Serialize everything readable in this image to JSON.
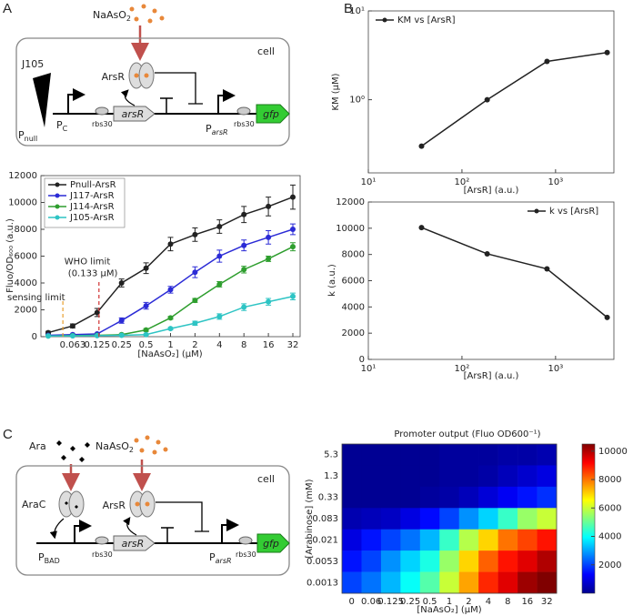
{
  "panel_labels": [
    "A",
    "B",
    "C"
  ],
  "diagram_a": {
    "inducer": {
      "main": "NaAsO",
      "sub": "2"
    },
    "cell": "cell",
    "protein": "ArsR",
    "library": "J105",
    "promoter_null": {
      "main": "P",
      "sub": "null"
    },
    "promoter_c": {
      "main": "P",
      "sub": "C"
    },
    "rbs_1": "rbs30",
    "gene": "arsR",
    "promoter_ars": {
      "main": "P",
      "sub": "arsR"
    },
    "rbs_2": "rbs30",
    "reporter": "gfp"
  },
  "diagram_c": {
    "inducer_ara": "Ara",
    "inducer": {
      "main": "NaAsO",
      "sub": "2"
    },
    "cell": "cell",
    "protein_arac": "AraC",
    "protein": "ArsR",
    "promoter_bad": {
      "main": "P",
      "sub": "BAD"
    },
    "rbs_1": "rbs30",
    "gene": "arsR",
    "promoter_ars": {
      "main": "P",
      "sub": "arsR"
    },
    "rbs_2": "rbs30",
    "reporter": "gfp"
  },
  "chart_data": [
    {
      "type": "line",
      "y_label": "Fluo/OD₆₀₀ (a.u.)",
      "x_label": "[NaAsO₂] (μM)",
      "categories": [
        null,
        "0.063",
        "0.125",
        "0.25",
        "0.5",
        "1",
        "2",
        "4",
        "8",
        "16",
        "32"
      ],
      "ylim": [
        0,
        12000
      ],
      "yticks": [
        0,
        2000,
        4000,
        6000,
        8000,
        10000,
        12000
      ],
      "legend": "upper left",
      "series": [
        {
          "name": "Pnull-ArsR",
          "color": "#222222",
          "values": [
            300,
            800,
            1800,
            4000,
            5100,
            6900,
            7600,
            8200,
            9100,
            9700,
            10400
          ],
          "errors": [
            100,
            150,
            300,
            300,
            400,
            500,
            500,
            500,
            600,
            700,
            900
          ]
        },
        {
          "name": "J117-ArsR",
          "color": "#2b2bd6",
          "values": [
            100,
            150,
            200,
            1200,
            2300,
            3500,
            4800,
            6000,
            6800,
            7400,
            8000
          ],
          "errors": [
            50,
            50,
            50,
            200,
            250,
            250,
            400,
            450,
            400,
            500,
            400
          ]
        },
        {
          "name": "J114-ArsR",
          "color": "#2e9e2e",
          "values": [
            50,
            80,
            100,
            150,
            500,
            1400,
            2700,
            3900,
            5000,
            5800,
            6700
          ],
          "errors": [
            30,
            30,
            30,
            50,
            100,
            100,
            150,
            200,
            250,
            200,
            300
          ]
        },
        {
          "name": "J105-ArsR",
          "color": "#2ec4c4",
          "values": [
            50,
            60,
            80,
            100,
            150,
            600,
            1000,
            1500,
            2200,
            2600,
            3000
          ],
          "errors": [
            30,
            30,
            30,
            50,
            50,
            80,
            150,
            200,
            250,
            250,
            250
          ]
        }
      ],
      "annotations": [
        "sensing limit",
        "WHO limit",
        "(0.133 μM)"
      ]
    },
    {
      "type": "line",
      "xscale": "log",
      "yscale": "log",
      "x_label": "[ArsR] (a.u.)",
      "y_label": "KM (μM)",
      "legend": "upper left",
      "x": [
        37,
        186,
        810,
        3560
      ],
      "xlim": [
        10,
        4200
      ],
      "ylim": [
        0.15,
        10
      ],
      "xticks": [
        {
          "value": 10,
          "label": "10¹"
        },
        {
          "value": 100,
          "label": "10²"
        },
        {
          "value": 1000,
          "label": "10³"
        }
      ],
      "yticks": [
        {
          "value": 1,
          "label": "10⁰"
        },
        {
          "value": 10,
          "label": "10¹"
        }
      ],
      "series": [
        {
          "name": "KM vs [ArsR]",
          "color": "#222222",
          "values": [
            0.3,
            1.0,
            2.7,
            3.4
          ]
        }
      ]
    },
    {
      "type": "line",
      "xscale": "log",
      "yscale": "linear",
      "x_label": "[ArsR] (a.u.)",
      "y_label": "k (a.u.)",
      "legend": "upper right",
      "x": [
        37,
        186,
        810,
        3560
      ],
      "xlim": [
        10,
        4200
      ],
      "ylim": [
        0,
        12000
      ],
      "xticks": [
        {
          "value": 10,
          "label": "10¹"
        },
        {
          "value": 100,
          "label": "10²"
        },
        {
          "value": 1000,
          "label": "10³"
        }
      ],
      "yticks": [
        0,
        2000,
        4000,
        6000,
        8000,
        10000,
        12000
      ],
      "series": [
        {
          "name": "k vs [ArsR]",
          "color": "#222222",
          "values": [
            10050,
            8050,
            6900,
            3200
          ]
        }
      ]
    },
    {
      "type": "heatmap",
      "title": "Promoter output (Fluo OD600⁻¹)",
      "x_label": "[NaAsO₂] (μM)",
      "y_label": "[Arabinose] (mM)",
      "colormap": "jet",
      "categories": [
        "0",
        "0.06",
        "0.125",
        "0.25",
        "0.5",
        "1",
        "2",
        "4",
        "8",
        "16",
        "32"
      ],
      "y_categories": [
        "5.3",
        "1.3",
        "0.33",
        "0.083",
        "0.021",
        "0.0053",
        "0.0013"
      ],
      "zlim": [
        0,
        10500
      ],
      "colorbar_ticks": [
        2000,
        4000,
        6000,
        8000,
        10000
      ],
      "values": [
        [
          200,
          200,
          200,
          200,
          200,
          300,
          300,
          300,
          400,
          400,
          500
        ],
        [
          200,
          200,
          200,
          200,
          200,
          300,
          300,
          400,
          600,
          800,
          1000
        ],
        [
          200,
          200,
          200,
          200,
          300,
          400,
          600,
          900,
          1200,
          1500,
          1800
        ],
        [
          500,
          600,
          700,
          1000,
          1400,
          2000,
          2800,
          3500,
          4500,
          5500,
          6000
        ],
        [
          1000,
          1500,
          2000,
          2500,
          3200,
          4500,
          5800,
          7000,
          8000,
          8500,
          9000
        ],
        [
          1500,
          2000,
          2800,
          3500,
          4200,
          5500,
          7000,
          8200,
          9000,
          9500,
          10000
        ],
        [
          2000,
          2500,
          3200,
          4000,
          4800,
          6000,
          7500,
          8800,
          9500,
          10200,
          10500
        ]
      ]
    }
  ]
}
